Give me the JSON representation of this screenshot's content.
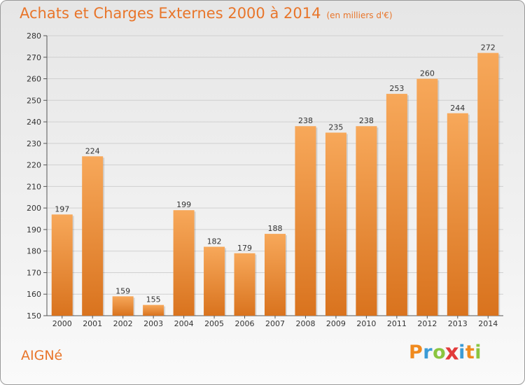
{
  "header": {
    "title": "Achats et Charges Externes 2000 à 2014",
    "subtitle": "(en milliers d'€)"
  },
  "footer": {
    "town": "AIGNé",
    "brand_letters": [
      "P",
      "r",
      "o",
      "x",
      "i",
      "t",
      "i"
    ]
  },
  "colors": {
    "accent": "#e8752a",
    "bar_top": "#f7a85a",
    "bar_bottom": "#d9731e",
    "brand_letters": [
      "#f08a1e",
      "#3b9bd6",
      "#8bc53f",
      "#e23a3a",
      "#3b9bd6",
      "#f08a1e",
      "#8bc53f"
    ]
  },
  "chart_data": {
    "type": "bar",
    "title": "Achats et Charges Externes 2000 à 2014",
    "subtitle": "(en milliers d'€)",
    "categories": [
      "2000",
      "2001",
      "2002",
      "2003",
      "2004",
      "2005",
      "2006",
      "2007",
      "2008",
      "2009",
      "2010",
      "2011",
      "2012",
      "2013",
      "2014"
    ],
    "values": [
      197,
      224,
      159,
      155,
      199,
      182,
      179,
      188,
      238,
      235,
      238,
      253,
      260,
      244,
      272
    ],
    "ylim": [
      150,
      280
    ],
    "yticks": [
      150,
      160,
      170,
      180,
      190,
      200,
      210,
      220,
      230,
      240,
      250,
      260,
      270,
      280
    ],
    "grid": true,
    "xlabel": "",
    "ylabel": ""
  }
}
